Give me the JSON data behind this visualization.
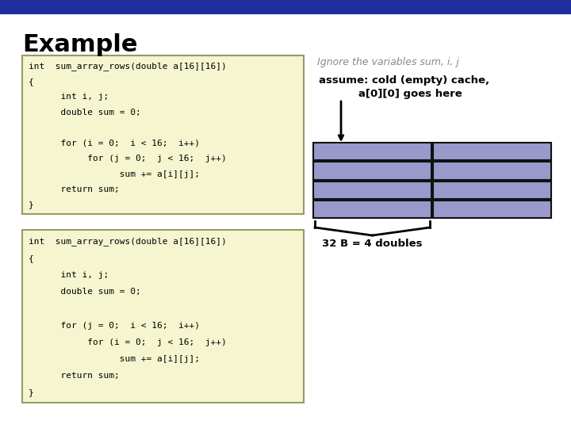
{
  "title": "Example",
  "title_fontsize": 22,
  "title_fontweight": "bold",
  "header_bar_color": "#1f2d9e",
  "bg_color": "#ffffff",
  "code_bg_color": "#f5f5d0",
  "code_border_color": "#999966",
  "grid_fill_color": "#9999cc",
  "grid_border_color": "#111111",
  "code1_lines": [
    "int  sum_array_rows(double a[16][16])",
    "{",
    "      int i, j;",
    "      double sum = 0;",
    "",
    "      for (i = 0;  i < 16;  i++)",
    "           for (j = 0;  j < 16;  j++)",
    "                 sum += a[i][j];",
    "      return sum;",
    "}"
  ],
  "code2_lines": [
    "int  sum_array_rows(double a[16][16])",
    "{",
    "      int i, j;",
    "      double sum = 0;",
    "",
    "      for (j = 0;  i < 16;  i++)",
    "           for (i = 0;  j < 16;  j++)",
    "                 sum += a[i][j];",
    "      return sum;",
    "}"
  ],
  "ignore_text": "Ignore the variables sum, i, j",
  "assume_line1": "assume: cold (empty) cache,",
  "assume_line2": "   a[0][0] goes here",
  "label_text": "32 B = 4 doubles",
  "grid_rows": 4,
  "grid_cols": 2
}
